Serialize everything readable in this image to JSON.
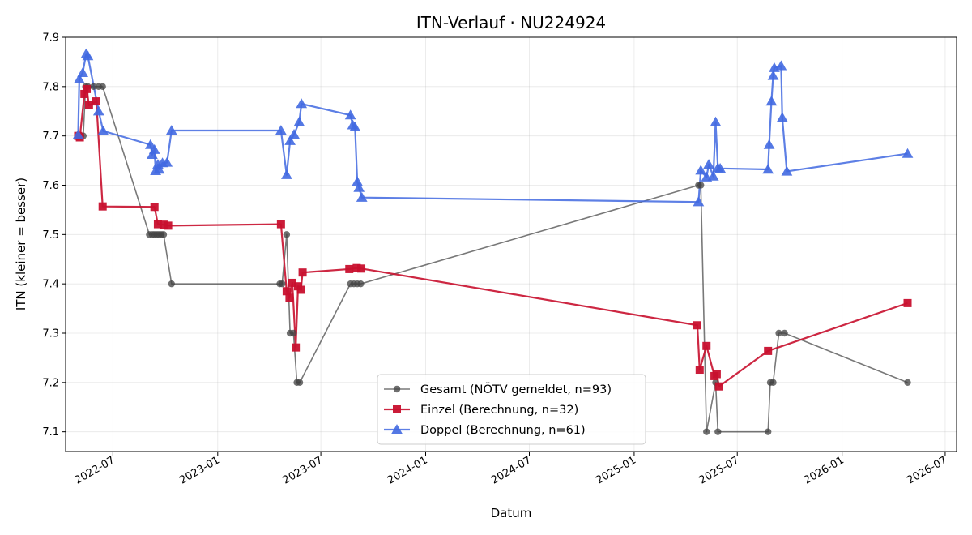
{
  "chart_data": {
    "type": "line",
    "title": "ITN-Verlauf · NU224924",
    "xlabel": "Datum",
    "ylabel": "ITN  (kleiner = besser)",
    "xlim": [
      "2022-04-09",
      "2026-07-21"
    ],
    "ylim": [
      7.06,
      7.9
    ],
    "x_ticks": [
      "2022-07",
      "2023-01",
      "2023-07",
      "2024-01",
      "2024-07",
      "2025-01",
      "2025-07",
      "2026-01",
      "2026-07"
    ],
    "y_ticks": [
      "7.1",
      "7.2",
      "7.3",
      "7.4",
      "7.5",
      "7.6",
      "7.7",
      "7.8",
      "7.9"
    ],
    "grid": true,
    "legend": "lower-center",
    "series": [
      {
        "name": "Gesamt (NÖTV gemeldet, n=93)",
        "color": "#444444",
        "marker": "circle",
        "points": [
          [
            "2022-05-01",
            7.7
          ],
          [
            "2022-05-06",
            7.7
          ],
          [
            "2022-05-10",
            7.7
          ],
          [
            "2022-05-14",
            7.8
          ],
          [
            "2022-05-18",
            7.8
          ],
          [
            "2022-05-28",
            7.8
          ],
          [
            "2022-06-06",
            7.8
          ],
          [
            "2022-06-13",
            7.8
          ],
          [
            "2022-09-03",
            7.5
          ],
          [
            "2022-09-08",
            7.5
          ],
          [
            "2022-09-12",
            7.5
          ],
          [
            "2022-09-16",
            7.5
          ],
          [
            "2022-09-20",
            7.5
          ],
          [
            "2022-09-24",
            7.5
          ],
          [
            "2022-09-28",
            7.5
          ],
          [
            "2022-10-12",
            7.4
          ],
          [
            "2023-04-20",
            7.4
          ],
          [
            "2023-04-24",
            7.4
          ],
          [
            "2023-05-02",
            7.5
          ],
          [
            "2023-05-08",
            7.3
          ],
          [
            "2023-05-14",
            7.3
          ],
          [
            "2023-05-20",
            7.2
          ],
          [
            "2023-05-25",
            7.2
          ],
          [
            "2023-08-22",
            7.4
          ],
          [
            "2023-08-28",
            7.4
          ],
          [
            "2023-09-03",
            7.4
          ],
          [
            "2023-09-09",
            7.4
          ],
          [
            "2025-04-24",
            7.6
          ],
          [
            "2025-04-28",
            7.6
          ],
          [
            "2025-05-08",
            7.1
          ],
          [
            "2025-05-24",
            7.2
          ],
          [
            "2025-05-28",
            7.1
          ],
          [
            "2025-08-24",
            7.1
          ],
          [
            "2025-08-28",
            7.2
          ],
          [
            "2025-09-02",
            7.2
          ],
          [
            "2025-09-12",
            7.3
          ],
          [
            "2025-09-22",
            7.3
          ],
          [
            "2026-04-26",
            7.2
          ]
        ]
      },
      {
        "name": "Einzel (Berechnung, n=32)",
        "color": "#c8102e",
        "marker": "square",
        "points": [
          [
            "2022-05-01",
            7.7
          ],
          [
            "2022-05-04",
            7.697
          ],
          [
            "2022-05-12",
            7.785
          ],
          [
            "2022-05-16",
            7.795
          ],
          [
            "2022-05-20",
            7.762
          ],
          [
            "2022-06-02",
            7.77
          ],
          [
            "2022-06-13",
            7.557
          ],
          [
            "2022-09-12",
            7.556
          ],
          [
            "2022-09-18",
            7.521
          ],
          [
            "2022-09-28",
            7.52
          ],
          [
            "2022-10-06",
            7.518
          ],
          [
            "2023-04-22",
            7.521
          ],
          [
            "2023-05-02",
            7.385
          ],
          [
            "2023-05-07",
            7.372
          ],
          [
            "2023-05-12",
            7.402
          ],
          [
            "2023-05-18",
            7.271
          ],
          [
            "2023-05-22",
            7.395
          ],
          [
            "2023-05-27",
            7.388
          ],
          [
            "2023-05-30",
            7.423
          ],
          [
            "2023-08-20",
            7.43
          ],
          [
            "2023-09-02",
            7.432
          ],
          [
            "2023-09-10",
            7.431
          ],
          [
            "2025-04-22",
            7.316
          ],
          [
            "2025-04-26",
            7.226
          ],
          [
            "2025-05-08",
            7.274
          ],
          [
            "2025-05-22",
            7.213
          ],
          [
            "2025-05-26",
            7.217
          ],
          [
            "2025-05-30",
            7.192
          ],
          [
            "2025-08-24",
            7.264
          ],
          [
            "2026-04-26",
            7.361
          ]
        ]
      },
      {
        "name": "Doppel (Berechnung, n=61)",
        "color": "#4169e1",
        "marker": "triangle",
        "points": [
          [
            "2022-05-01",
            7.702
          ],
          [
            "2022-05-03",
            7.815
          ],
          [
            "2022-05-09",
            7.828
          ],
          [
            "2022-05-15",
            7.866
          ],
          [
            "2022-05-18",
            7.862
          ],
          [
            "2022-06-06",
            7.75
          ],
          [
            "2022-06-14",
            7.71
          ],
          [
            "2022-09-05",
            7.682
          ],
          [
            "2022-09-08",
            7.662
          ],
          [
            "2022-09-12",
            7.672
          ],
          [
            "2022-09-14",
            7.629
          ],
          [
            "2022-09-18",
            7.642
          ],
          [
            "2022-09-20",
            7.632
          ],
          [
            "2022-09-26",
            7.645
          ],
          [
            "2022-10-04",
            7.646
          ],
          [
            "2022-10-12",
            7.711
          ],
          [
            "2023-04-22",
            7.711
          ],
          [
            "2023-05-02",
            7.621
          ],
          [
            "2023-05-08",
            7.69
          ],
          [
            "2023-05-15",
            7.703
          ],
          [
            "2023-05-24",
            7.728
          ],
          [
            "2023-05-28",
            7.765
          ],
          [
            "2023-08-22",
            7.742
          ],
          [
            "2023-08-26",
            7.722
          ],
          [
            "2023-08-30",
            7.718
          ],
          [
            "2023-09-03",
            7.607
          ],
          [
            "2023-09-06",
            7.595
          ],
          [
            "2023-09-11",
            7.575
          ],
          [
            "2025-04-24",
            7.566
          ],
          [
            "2025-04-28",
            7.63
          ],
          [
            "2025-05-08",
            7.616
          ],
          [
            "2025-05-12",
            7.642
          ],
          [
            "2025-05-20",
            7.618
          ],
          [
            "2025-05-24",
            7.728
          ],
          [
            "2025-05-28",
            7.635
          ],
          [
            "2025-06-01",
            7.634
          ],
          [
            "2025-08-24",
            7.632
          ],
          [
            "2025-08-26",
            7.682
          ],
          [
            "2025-08-30",
            7.77
          ],
          [
            "2025-09-02",
            7.822
          ],
          [
            "2025-09-04",
            7.838
          ],
          [
            "2025-09-16",
            7.842
          ],
          [
            "2025-09-18",
            7.737
          ],
          [
            "2025-09-26",
            7.628
          ],
          [
            "2026-04-26",
            7.664
          ]
        ]
      }
    ]
  }
}
